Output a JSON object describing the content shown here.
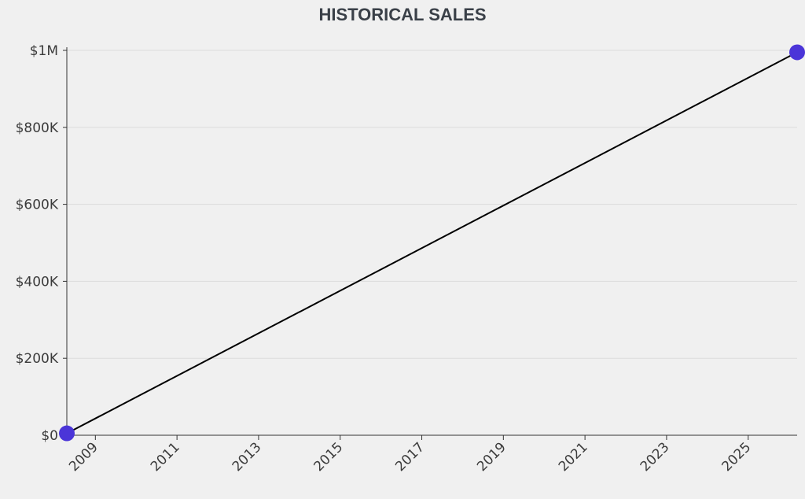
{
  "chart_data": {
    "type": "line",
    "title": "HISTORICAL SALES",
    "xlabel": "",
    "ylabel": "",
    "x_ticks": [
      "2009",
      "2011",
      "2013",
      "2015",
      "2017",
      "2019",
      "2021",
      "2023",
      "2025"
    ],
    "y_ticks": [
      "$0",
      "$200K",
      "$400K",
      "$600K",
      "$800K",
      "$1M"
    ],
    "xlim": [
      2008.3,
      2026.2
    ],
    "ylim": [
      0,
      1000000
    ],
    "grid": "horizontal",
    "series": [
      {
        "x": [
          2008.3,
          2026.2
        ],
        "y": [
          5000,
          995000
        ],
        "line_color": "#000000",
        "marker_color": "#4b35d8"
      }
    ]
  }
}
